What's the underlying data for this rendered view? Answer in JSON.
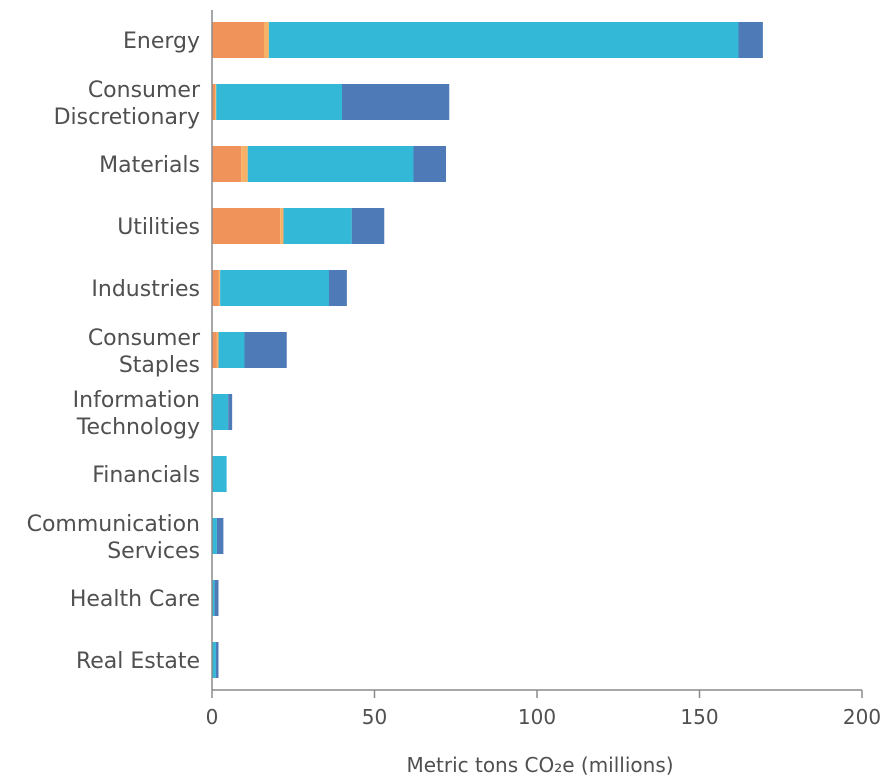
{
  "chart_data": {
    "type": "bar",
    "orientation": "horizontal",
    "stacked": true,
    "categories": [
      [
        "Energy"
      ],
      [
        "Consumer",
        "Discretionary"
      ],
      [
        "Materials"
      ],
      [
        "Utilities"
      ],
      [
        "Industries"
      ],
      [
        "Consumer",
        "Staples"
      ],
      [
        "Information",
        "Technology"
      ],
      [
        "Financials"
      ],
      [
        "Communication",
        "Services"
      ],
      [
        "Health Care"
      ],
      [
        "Real Estate"
      ]
    ],
    "series": [
      {
        "color": "#f0935a",
        "values": [
          16,
          1,
          9,
          21,
          2,
          1.5,
          0,
          0,
          0,
          0,
          0
        ]
      },
      {
        "color": "#f7b267",
        "values": [
          1.5,
          0.3,
          2,
          1,
          0.5,
          0.5,
          0,
          0,
          0,
          0,
          0
        ]
      },
      {
        "color": "#34b8d8",
        "values": [
          144.5,
          38.7,
          51,
          21,
          33.5,
          8,
          5,
          4.5,
          1.5,
          0.8,
          1.2
        ]
      },
      {
        "color": "#4f7ab8",
        "values": [
          7.5,
          33,
          10,
          10,
          5.5,
          13,
          1.2,
          0,
          2,
          1.2,
          0.8
        ]
      }
    ],
    "xlabel": "Metric tons CO₂e  (millions)",
    "xlim": [
      0,
      200
    ],
    "xticks": [
      "0",
      "50",
      "100",
      "150",
      "200"
    ],
    "xtick_values": [
      0,
      50,
      100,
      150,
      200
    ],
    "grid": false,
    "legend": "none"
  }
}
